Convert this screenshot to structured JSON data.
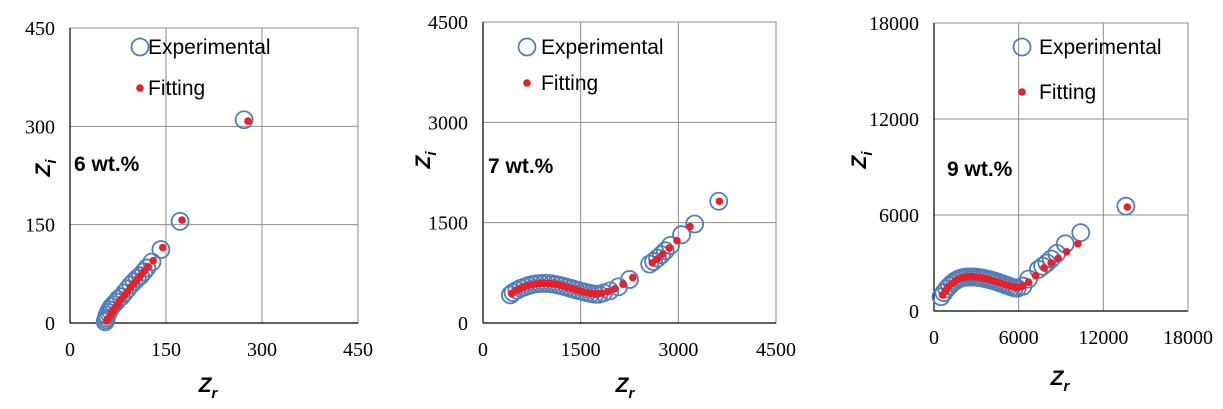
{
  "colors": {
    "experimental": "#4f7fb8",
    "fitting": "#e8202a",
    "grid": "#8c8c8c"
  },
  "chart_data": [
    {
      "type": "scatter",
      "annotation": "6 wt.%",
      "xlabel": "Z",
      "xlabel_sub": "r",
      "ylabel": "Z",
      "ylabel_sub": "i",
      "xlim": [
        0,
        450
      ],
      "ylim": [
        0,
        450
      ],
      "xticks": [
        "0",
        "150",
        "300",
        "450"
      ],
      "yticks": [
        "0",
        "150",
        "300",
        "450"
      ],
      "legend": [
        "Experimental",
        "Fitting"
      ],
      "series": [
        {
          "name": "Experimental",
          "points": [
            [
              55,
              2
            ],
            [
              56,
              5
            ],
            [
              57,
              8
            ],
            [
              58,
              12
            ],
            [
              60,
              16
            ],
            [
              62,
              20
            ],
            [
              65,
              25
            ],
            [
              68,
              28
            ],
            [
              72,
              32
            ],
            [
              75,
              36
            ],
            [
              80,
              40
            ],
            [
              85,
              46
            ],
            [
              90,
              52
            ],
            [
              95,
              58
            ],
            [
              100,
              63
            ],
            [
              105,
              68
            ],
            [
              110,
              72
            ],
            [
              115,
              78
            ],
            [
              120,
              84
            ],
            [
              128,
              93
            ],
            [
              142,
              112
            ],
            [
              172,
              155
            ],
            [
              272,
              310
            ]
          ]
        },
        {
          "name": "Fitting",
          "points": [
            [
              57,
              3
            ],
            [
              59,
              6
            ],
            [
              62,
              10
            ],
            [
              65,
              15
            ],
            [
              68,
              20
            ],
            [
              72,
              25
            ],
            [
              76,
              31
            ],
            [
              80,
              36
            ],
            [
              85,
              42
            ],
            [
              90,
              48
            ],
            [
              95,
              55
            ],
            [
              100,
              60
            ],
            [
              105,
              66
            ],
            [
              110,
              72
            ],
            [
              116,
              79
            ],
            [
              122,
              86
            ],
            [
              130,
              95
            ],
            [
              145,
              115
            ],
            [
              175,
              157
            ],
            [
              278,
              308
            ]
          ]
        }
      ]
    },
    {
      "type": "scatter",
      "annotation": "7 wt.%",
      "xlabel": "Z",
      "xlabel_sub": "r",
      "ylabel": "Z",
      "ylabel_sub": "i",
      "xlim": [
        0,
        4500
      ],
      "ylim": [
        0,
        4500
      ],
      "xticks": [
        "0",
        "1500",
        "3000",
        "4500"
      ],
      "yticks": [
        "0",
        "1500",
        "3000",
        "4500"
      ],
      "legend": [
        "Experimental",
        "Fitting"
      ],
      "series": [
        {
          "name": "Experimental",
          "points": [
            [
              420,
              420
            ],
            [
              460,
              455
            ],
            [
              520,
              490
            ],
            [
              580,
              520
            ],
            [
              640,
              540
            ],
            [
              700,
              560
            ],
            [
              760,
              575
            ],
            [
              820,
              585
            ],
            [
              880,
              590
            ],
            [
              940,
              592
            ],
            [
              1000,
              590
            ],
            [
              1060,
              585
            ],
            [
              1120,
              575
            ],
            [
              1180,
              562
            ],
            [
              1240,
              548
            ],
            [
              1300,
              532
            ],
            [
              1360,
              515
            ],
            [
              1420,
              498
            ],
            [
              1480,
              482
            ],
            [
              1540,
              466
            ],
            [
              1600,
              452
            ],
            [
              1660,
              440
            ],
            [
              1720,
              430
            ],
            [
              1780,
              430
            ],
            [
              1850,
              450
            ],
            [
              1950,
              480
            ],
            [
              2080,
              540
            ],
            [
              2250,
              650
            ],
            [
              2560,
              880
            ],
            [
              2620,
              920
            ],
            [
              2680,
              970
            ],
            [
              2740,
              1020
            ],
            [
              2800,
              1080
            ],
            [
              2880,
              1160
            ],
            [
              3050,
              1320
            ],
            [
              3250,
              1480
            ],
            [
              3620,
              1820
            ]
          ]
        },
        {
          "name": "Fitting",
          "points": [
            [
              440,
              440
            ],
            [
              500,
              480
            ],
            [
              560,
              510
            ],
            [
              620,
              535
            ],
            [
              680,
              555
            ],
            [
              740,
              570
            ],
            [
              800,
              582
            ],
            [
              860,
              590
            ],
            [
              920,
              593
            ],
            [
              980,
              592
            ],
            [
              1040,
              588
            ],
            [
              1100,
              580
            ],
            [
              1160,
              570
            ],
            [
              1220,
              556
            ],
            [
              1280,
              540
            ],
            [
              1340,
              522
            ],
            [
              1400,
              505
            ],
            [
              1460,
              488
            ],
            [
              1520,
              472
            ],
            [
              1580,
              458
            ],
            [
              1640,
              446
            ],
            [
              1700,
              438
            ],
            [
              1760,
              436
            ],
            [
              1830,
              445
            ],
            [
              1920,
              470
            ],
            [
              2020,
              510
            ],
            [
              2150,
              580
            ],
            [
              2300,
              680
            ],
            [
              2600,
              900
            ],
            [
              2680,
              960
            ],
            [
              2760,
              1030
            ],
            [
              2860,
              1120
            ],
            [
              2980,
              1230
            ],
            [
              3180,
              1440
            ],
            [
              3630,
              1820
            ]
          ]
        }
      ]
    },
    {
      "type": "scatter",
      "annotation": "9 wt.%",
      "xlabel": "Z",
      "xlabel_sub": "r",
      "ylabel": "Z",
      "ylabel_sub": "i",
      "xlim": [
        0,
        18000
      ],
      "ylim": [
        0,
        18000
      ],
      "xticks": [
        "0",
        "6000",
        "12000",
        "18000"
      ],
      "yticks": [
        "0",
        "6000",
        "12000",
        "18000"
      ],
      "legend": [
        "Experimental",
        "Fitting"
      ],
      "series": [
        {
          "name": "Experimental",
          "points": [
            [
              500,
              900
            ],
            [
              700,
              1150
            ],
            [
              900,
              1380
            ],
            [
              1100,
              1580
            ],
            [
              1300,
              1740
            ],
            [
              1500,
              1880
            ],
            [
              1700,
              1980
            ],
            [
              1900,
              2050
            ],
            [
              2100,
              2100
            ],
            [
              2300,
              2120
            ],
            [
              2500,
              2130
            ],
            [
              2700,
              2130
            ],
            [
              2900,
              2120
            ],
            [
              3100,
              2100
            ],
            [
              3300,
              2080
            ],
            [
              3500,
              2050
            ],
            [
              3700,
              2010
            ],
            [
              3900,
              1970
            ],
            [
              4100,
              1920
            ],
            [
              4300,
              1870
            ],
            [
              4500,
              1810
            ],
            [
              4700,
              1750
            ],
            [
              4900,
              1690
            ],
            [
              5100,
              1620
            ],
            [
              5300,
              1560
            ],
            [
              5500,
              1500
            ],
            [
              5700,
              1450
            ],
            [
              5900,
              1420
            ],
            [
              6300,
              1550
            ],
            [
              6700,
              2000
            ],
            [
              7400,
              2600
            ],
            [
              7700,
              2800
            ],
            [
              8000,
              3000
            ],
            [
              8300,
              3250
            ],
            [
              8700,
              3600
            ],
            [
              9300,
              4200
            ],
            [
              10400,
              4900
            ],
            [
              13600,
              6550
            ]
          ]
        },
        {
          "name": "Fitting",
          "points": [
            [
              600,
              1000
            ],
            [
              800,
              1250
            ],
            [
              1000,
              1480
            ],
            [
              1250,
              1700
            ],
            [
              1500,
              1880
            ],
            [
              1750,
              2000
            ],
            [
              2000,
              2080
            ],
            [
              2250,
              2130
            ],
            [
              2500,
              2150
            ],
            [
              2750,
              2150
            ],
            [
              3000,
              2130
            ],
            [
              3250,
              2100
            ],
            [
              3500,
              2060
            ],
            [
              3750,
              2010
            ],
            [
              4000,
              1950
            ],
            [
              4250,
              1880
            ],
            [
              4500,
              1810
            ],
            [
              4750,
              1740
            ],
            [
              5000,
              1670
            ],
            [
              5250,
              1600
            ],
            [
              5500,
              1540
            ],
            [
              5750,
              1490
            ],
            [
              6000,
              1470
            ],
            [
              6300,
              1560
            ],
            [
              6700,
              1800
            ],
            [
              7200,
              2200
            ],
            [
              7800,
              2700
            ],
            [
              8300,
              3000
            ],
            [
              8800,
              3300
            ],
            [
              9400,
              3700
            ],
            [
              10200,
              4200
            ],
            [
              13700,
              6500
            ]
          ]
        }
      ]
    }
  ]
}
